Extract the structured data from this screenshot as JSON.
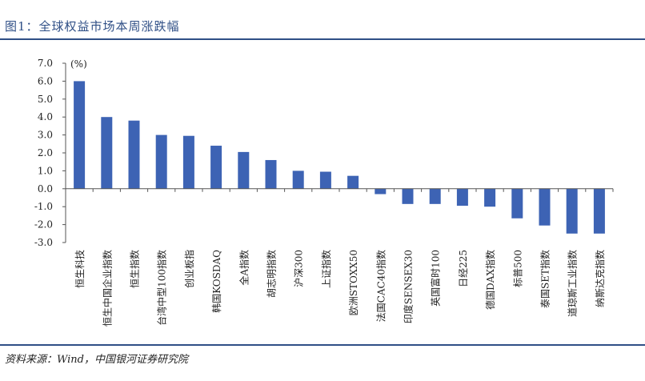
{
  "figure_title": "图1：全球权益市场本周涨跌幅",
  "source": "资料来源：Wind，中国银河证券研究院",
  "chart_data": {
    "type": "bar",
    "unit_label": "(%)",
    "bar_color": "#3d63b4",
    "negative_tick_color": "#e0322d",
    "ylim": [
      -3.0,
      7.0
    ],
    "yticks": [
      "7.0",
      "6.0",
      "5.0",
      "4.0",
      "3.0",
      "2.0",
      "1.0",
      "0.0",
      "-1.0",
      "-2.0",
      "-3.0"
    ],
    "categories": [
      "恒生科技",
      "恒生中国企业指数",
      "恒生指数",
      "台湾中型100指数",
      "创业板指",
      "韩国KOSDAQ",
      "全A指数",
      "胡志明指数",
      "沪深300",
      "上证指数",
      "欧洲STOXX50",
      "法国CAC40指数",
      "印度SENSEX30",
      "英国富时100",
      "日经225",
      "德国DAX指数",
      "标普500",
      "泰国SET指数",
      "道琼斯工业指数",
      "纳斯达克指数"
    ],
    "values": [
      6.0,
      4.0,
      3.8,
      3.0,
      2.95,
      2.4,
      2.05,
      1.6,
      1.0,
      0.95,
      0.72,
      -0.3,
      -0.85,
      -0.85,
      -0.95,
      -1.0,
      -1.65,
      -2.05,
      -2.5,
      -2.5
    ]
  }
}
